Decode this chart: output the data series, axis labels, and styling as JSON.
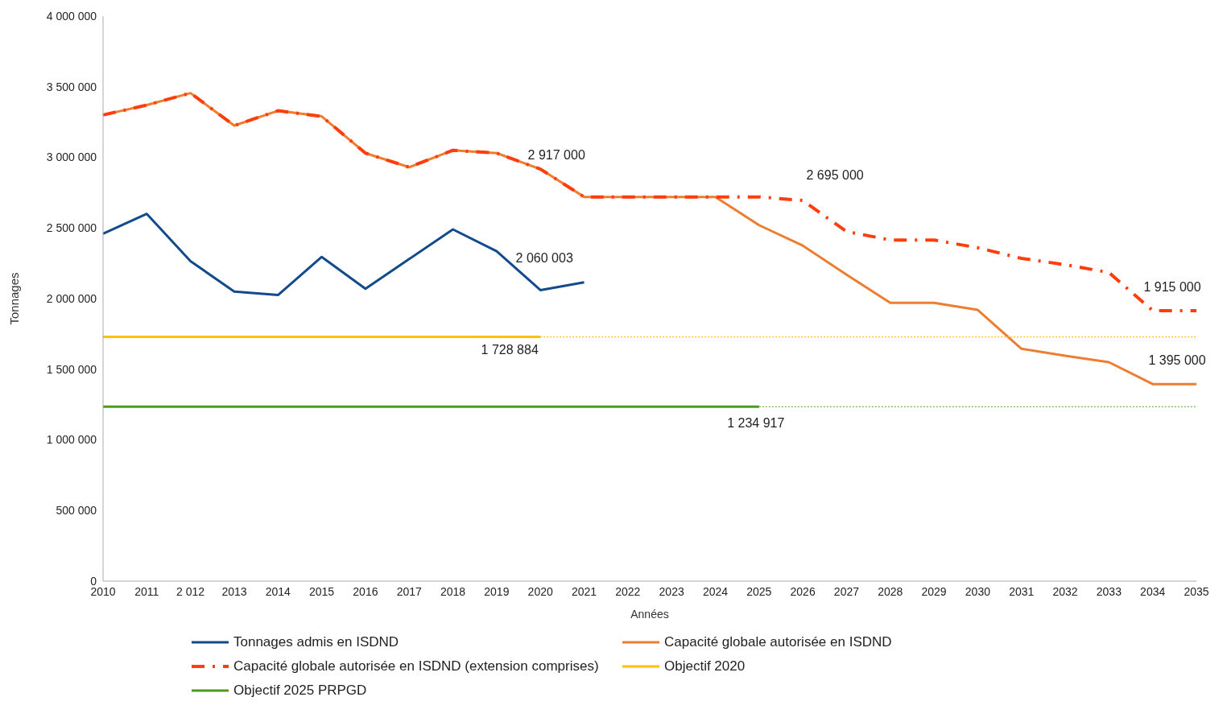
{
  "chart_data": {
    "type": "line",
    "xlabel": "Années",
    "ylabel": "Tonnages",
    "categories": [
      "2010",
      "2011",
      "2 012",
      "2013",
      "2014",
      "2015",
      "2016",
      "2017",
      "2018",
      "2019",
      "2020",
      "2021",
      "2022",
      "2023",
      "2024",
      "2025",
      "2026",
      "2027",
      "2028",
      "2029",
      "2030",
      "2031",
      "2032",
      "2033",
      "2034",
      "2035"
    ],
    "series": [
      {
        "name": "Tonnages admis en ISDND",
        "color": "#124a8c",
        "line_style": "solid",
        "values": [
          2460000,
          2600000,
          2265000,
          2050000,
          2025000,
          2295000,
          2070000,
          2280000,
          2490000,
          2335000,
          2060003,
          2115000,
          null,
          null,
          null,
          null,
          null,
          null,
          null,
          null,
          null,
          null,
          null,
          null,
          null,
          null
        ]
      },
      {
        "name": "Capacité globale autorisée en ISDND",
        "color": "#ed7d31",
        "line_style": "solid",
        "values": [
          3300000,
          3370000,
          3455000,
          3225000,
          3330000,
          3290000,
          3030000,
          2930000,
          3050000,
          3030000,
          2917000,
          2720000,
          2720000,
          2720000,
          2720000,
          2520000,
          2375000,
          2170000,
          1970000,
          1970000,
          1920000,
          1645000,
          1595000,
          1550000,
          1395000,
          1395000
        ]
      },
      {
        "name": "Capacité globale autorisée en ISDND (extension comprises)",
        "color": "#ff3d0d",
        "line_style": "dashed",
        "values": [
          3300000,
          3370000,
          3455000,
          3225000,
          3330000,
          3290000,
          3030000,
          2930000,
          3050000,
          3030000,
          2917000,
          2720000,
          2720000,
          2720000,
          2720000,
          2720000,
          2695000,
          2475000,
          2415000,
          2415000,
          2360000,
          2285000,
          2240000,
          2185000,
          1915000,
          1915000
        ]
      },
      {
        "name": "Objectif 2020",
        "color": "#ffc000",
        "line_style": "solid",
        "values": [
          1728884,
          1728884,
          1728884,
          1728884,
          1728884,
          1728884,
          1728884,
          1728884,
          1728884,
          1728884,
          1728884,
          null,
          null,
          null,
          null,
          null,
          null,
          null,
          null,
          null,
          null,
          null,
          null,
          null,
          null,
          null
        ]
      },
      {
        "color": "#ffc000",
        "line_style": "dotted",
        "values": [
          null,
          null,
          null,
          null,
          null,
          null,
          null,
          null,
          null,
          null,
          1728884,
          1728884,
          1728884,
          1728884,
          1728884,
          1728884,
          1728884,
          1728884,
          1728884,
          1728884,
          1728884,
          1728884,
          1728884,
          1728884,
          1728884,
          1728884
        ]
      },
      {
        "name": "Objectif 2025 PRPGD",
        "color": "#4e9a1e",
        "line_style": "solid",
        "values": [
          1234917,
          1234917,
          1234917,
          1234917,
          1234917,
          1234917,
          1234917,
          1234917,
          1234917,
          1234917,
          1234917,
          1234917,
          1234917,
          1234917,
          1234917,
          1234917,
          null,
          null,
          null,
          null,
          null,
          null,
          null,
          null,
          null,
          null
        ]
      },
      {
        "color": "#4e9a1e",
        "line_style": "dotted",
        "values": [
          null,
          null,
          null,
          null,
          null,
          null,
          null,
          null,
          null,
          null,
          null,
          null,
          null,
          null,
          null,
          1234917,
          1234917,
          1234917,
          1234917,
          1234917,
          1234917,
          1234917,
          1234917,
          1234917,
          1234917,
          1234917
        ]
      }
    ],
    "ylim": [
      0,
      4000000
    ],
    "yticks": [
      0,
      {
        "value": 500000,
        "label": "500 000"
      },
      {
        "value": 1000000,
        "label": "1 000 000"
      },
      {
        "value": 1500000,
        "label": "1 500 000"
      },
      {
        "value": 2000000,
        "label": "2 000 000"
      },
      {
        "value": 2500000,
        "label": "2 500 000"
      },
      {
        "value": 3000000,
        "label": "3 000 000"
      },
      {
        "value": 3500000,
        "label": "3 500 000"
      },
      {
        "value": 4000000,
        "label": "4 000 000"
      }
    ],
    "annotations": [
      {
        "text": "2 917 000",
        "x": "2020",
        "y": 2917000
      },
      {
        "text": "2 060 003",
        "x": "2020",
        "y": 2060003
      },
      {
        "text": "1 728 884",
        "x": "2020",
        "y": 1728884
      },
      {
        "text": "1 234 917",
        "x": "2025",
        "y": 1234917
      },
      {
        "text": "2 695 000",
        "x": "2026",
        "y": 2695000
      },
      {
        "text": "1 915 000",
        "x": "2035",
        "y": 1915000
      },
      {
        "text": "1 395 000",
        "x": "2035",
        "y": 1395000
      }
    ],
    "grid": false,
    "legend": "bottom"
  }
}
